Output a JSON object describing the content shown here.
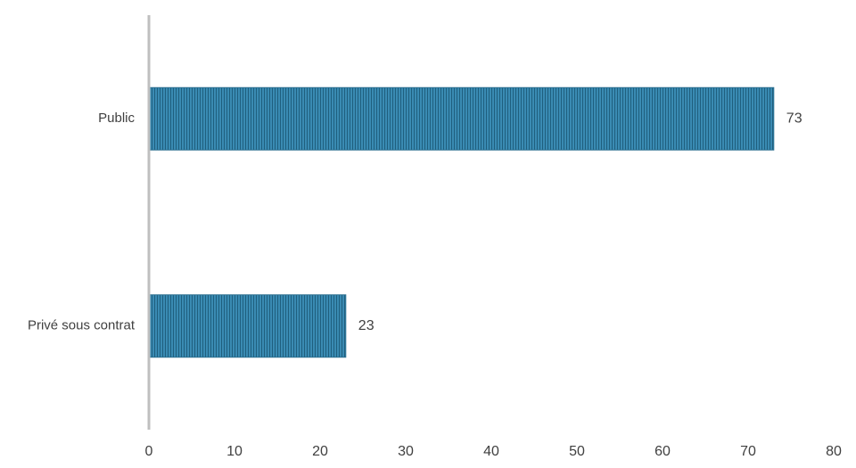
{
  "chart_data": {
    "type": "bar",
    "orientation": "horizontal",
    "categories": [
      "Public",
      "Privé sous contrat"
    ],
    "values": [
      73,
      23
    ],
    "color": "#3a8bb3",
    "xlim": [
      0,
      80
    ],
    "xticks": [
      0,
      10,
      20,
      30,
      40,
      50,
      60,
      70,
      80
    ],
    "grid": false
  }
}
